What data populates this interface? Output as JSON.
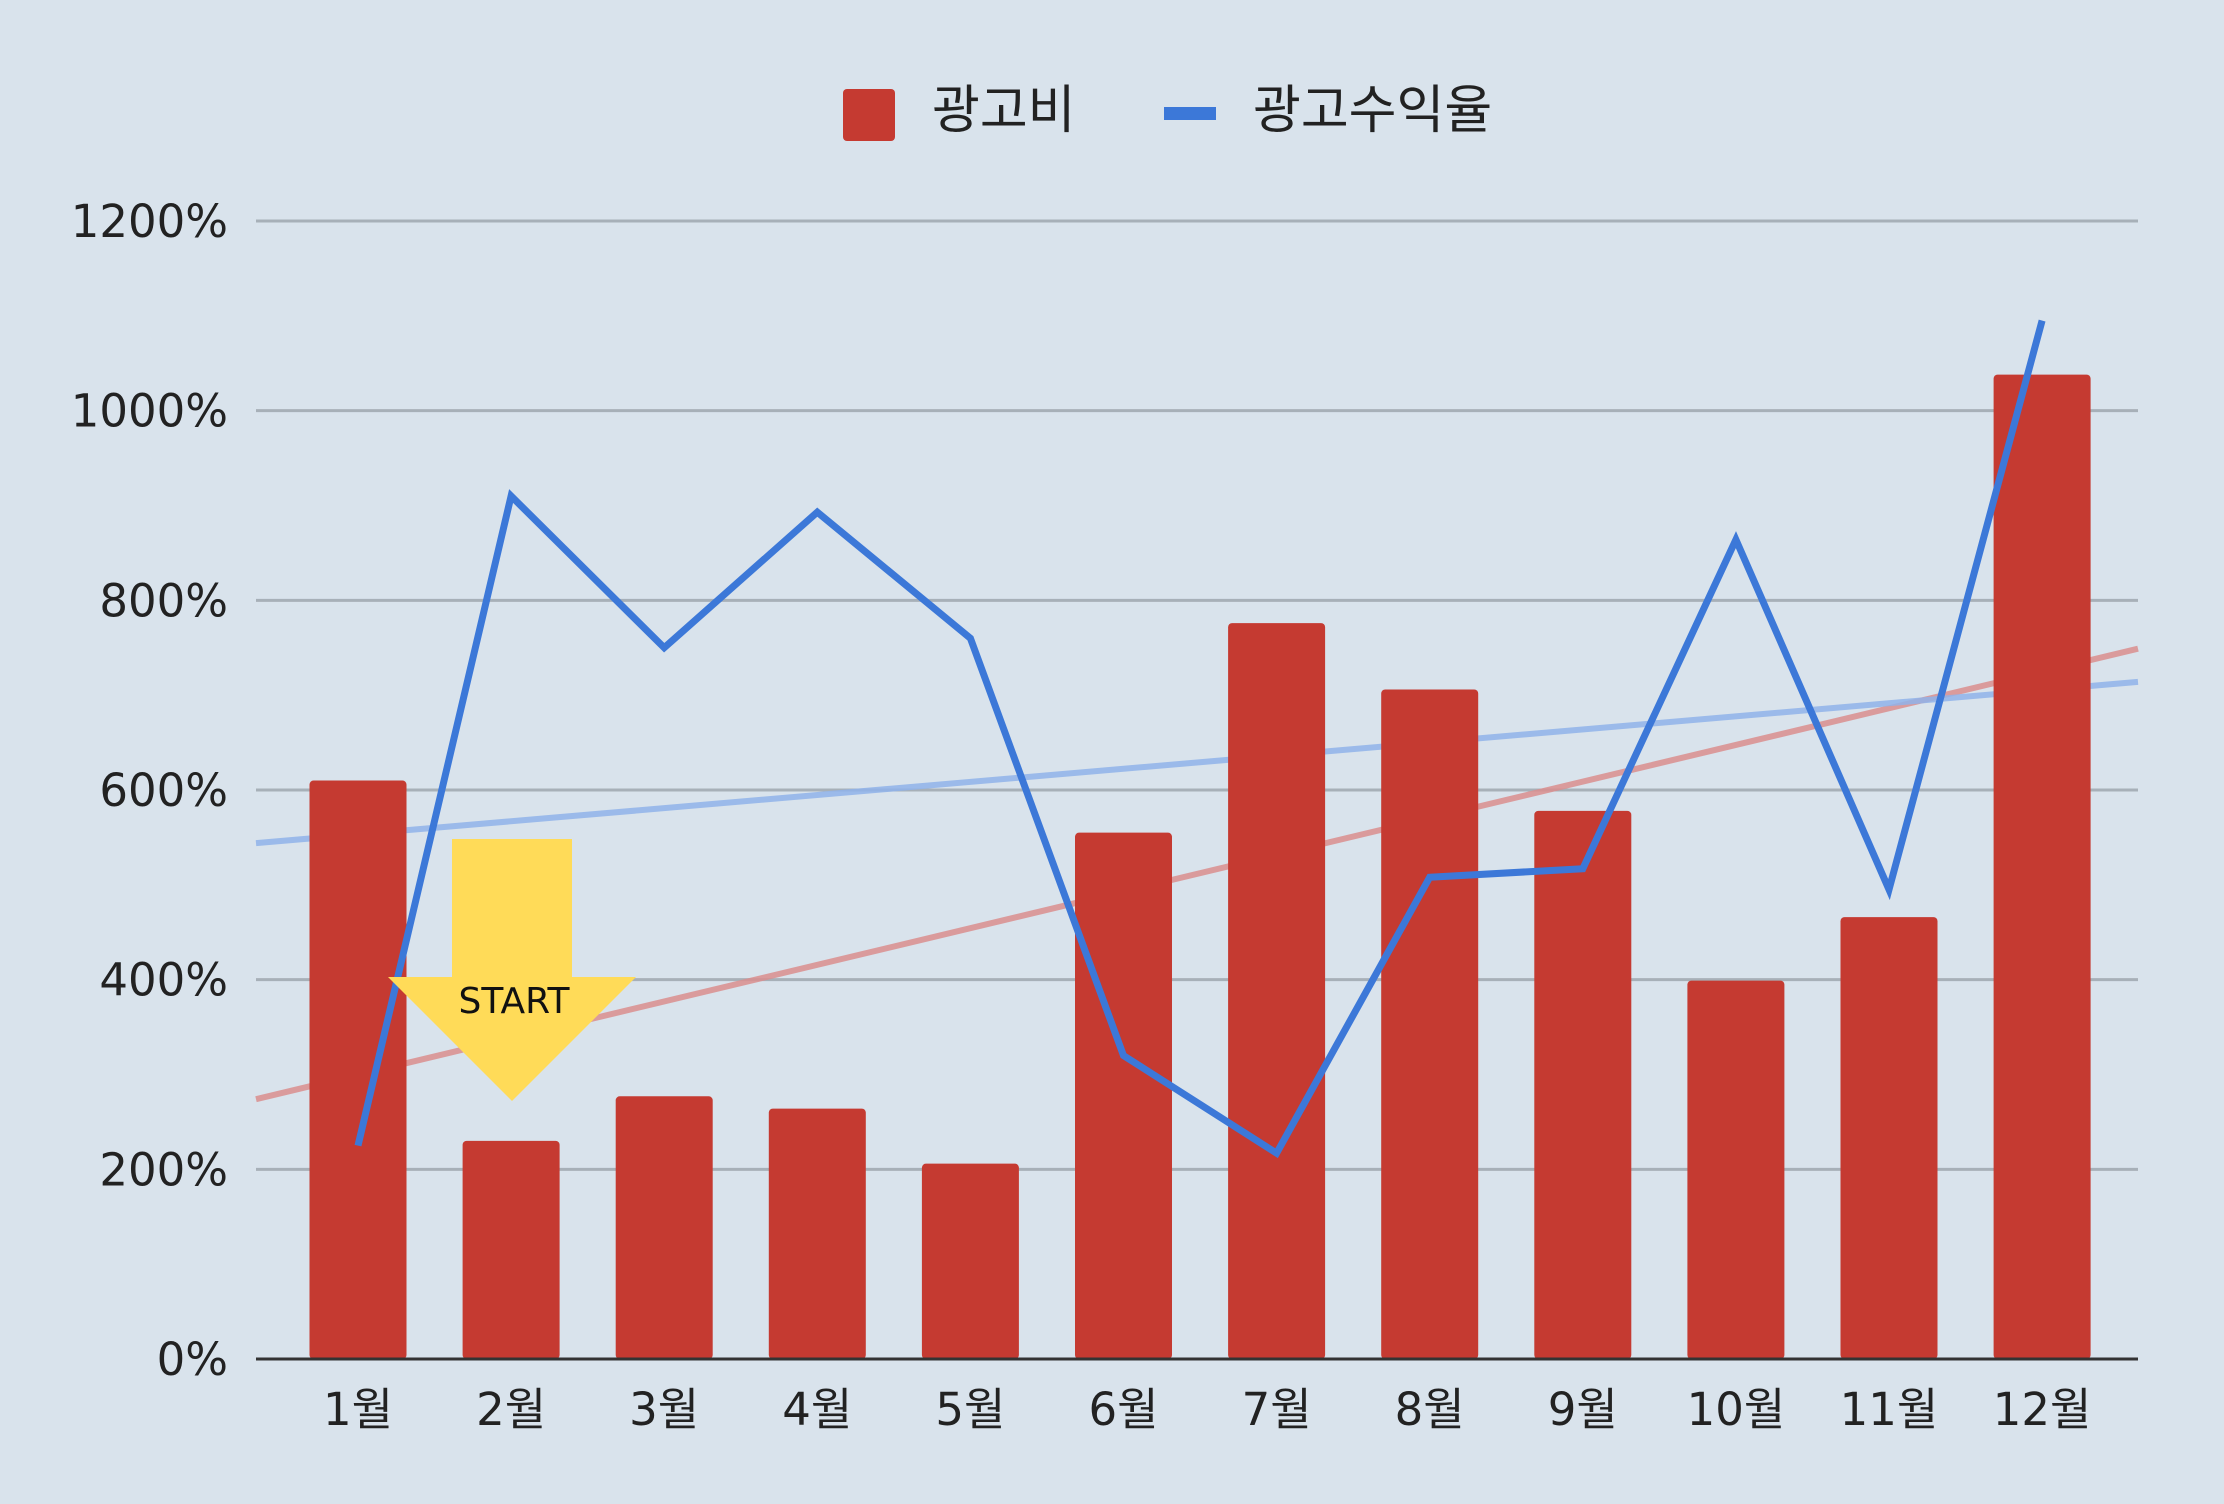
{
  "chart_data": {
    "type": "bar",
    "categories": [
      "1월",
      "2월",
      "3월",
      "4월",
      "5월",
      "6월",
      "7월",
      "8월",
      "9월",
      "10월",
      "11월",
      "12월"
    ],
    "series": [
      {
        "name": "광고비",
        "type": "bar",
        "color": "#c53a31",
        "values": [
          610,
          230,
          277,
          264,
          206,
          555,
          776,
          706,
          578,
          399,
          466,
          1038
        ]
      },
      {
        "name": "광고수익율",
        "type": "line",
        "color": "#3c78d8",
        "values": [
          225,
          910,
          750,
          893,
          760,
          320,
          217,
          508,
          517,
          864,
          495,
          1095
        ]
      }
    ],
    "trendlines": [
      {
        "series": "광고비",
        "color": "#d98e8e",
        "start": 274,
        "end": 749
      },
      {
        "series": "광고수익율",
        "color": "#8fb3ea",
        "start": 544,
        "end": 714
      }
    ],
    "y_ticks": [
      "0%",
      "200%",
      "400%",
      "600%",
      "800%",
      "1000%",
      "1200%"
    ],
    "ylim": [
      0,
      1200
    ],
    "grid": true,
    "legend_position": "top",
    "annotation": {
      "text": "START",
      "color": "#ffdb58",
      "category": "2월"
    }
  }
}
